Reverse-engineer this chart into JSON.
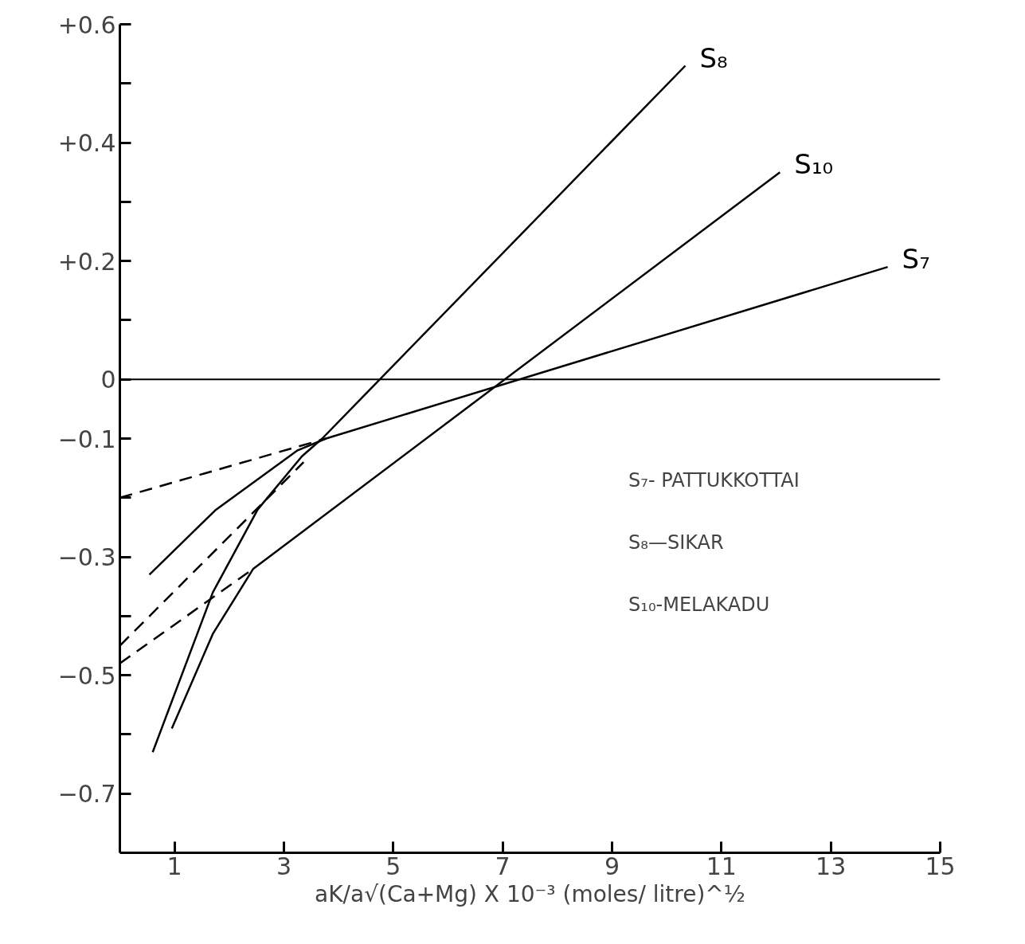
{
  "chart_data": {
    "type": "line",
    "xlabel": "aK/a√(Ca+Mg) X 10⁻³ (moles/ litre)^½",
    "xlim": [
      0,
      15
    ],
    "xticks": [
      1,
      3,
      5,
      7,
      9,
      11,
      13,
      15
    ],
    "ylim": [
      -0.8,
      0.6
    ],
    "yticks": [
      {
        "value": 0.6,
        "label": "+0.6"
      },
      {
        "value": 0.5,
        "label": null
      },
      {
        "value": 0.4,
        "label": "+0.4"
      },
      {
        "value": 0.3,
        "label": null
      },
      {
        "value": 0.2,
        "label": "+0.2"
      },
      {
        "value": 0.1,
        "label": null
      },
      0,
      -0.1,
      {
        "value": -0.2,
        "label": null
      },
      -0.3,
      {
        "value": -0.4,
        "label": null
      },
      -0.5,
      {
        "value": -0.6,
        "label": null
      },
      -0.7
    ],
    "grid": false,
    "marker": "none",
    "ref_lines": [
      {
        "axis": "y",
        "value": 0,
        "label": null,
        "color": "#000000"
      }
    ],
    "annotations": [
      "S₇- PATTUKKOTTAI",
      "S₈—SIKAR",
      "S₁₀-MELAKADU"
    ],
    "series": [
      {
        "name": "S₈",
        "color": "#000000",
        "line_style": "solid",
        "x": [
          0.6,
          1.7,
          2.52,
          3.33,
          3.7,
          10.34
        ],
        "values": [
          -0.63,
          -0.36,
          -0.22,
          -0.13,
          -0.1,
          0.53
        ]
      },
      {
        "name": "S₁₀",
        "color": "#000000",
        "line_style": "solid",
        "x": [
          0.95,
          1.7,
          2.44,
          12.07
        ],
        "values": [
          -0.59,
          -0.43,
          -0.32,
          0.35
        ]
      },
      {
        "name": "S₇",
        "color": "#000000",
        "line_style": "solid",
        "x": [
          0.54,
          1.76,
          3.25,
          3.77,
          14.04
        ],
        "values": [
          -0.33,
          -0.22,
          -0.12,
          -0.1,
          0.19
        ]
      },
      {
        "color": "#000000",
        "line_style": "dashed",
        "x": [
          0,
          3.36
        ],
        "values": [
          -0.45,
          -0.14
        ]
      },
      {
        "color": "#000000",
        "line_style": "dashed",
        "x": [
          0,
          2.44
        ],
        "values": [
          -0.48,
          -0.32
        ]
      },
      {
        "color": "#000000",
        "line_style": "dashed",
        "x": [
          0,
          3.77
        ],
        "values": [
          -0.2,
          -0.1
        ]
      }
    ]
  }
}
